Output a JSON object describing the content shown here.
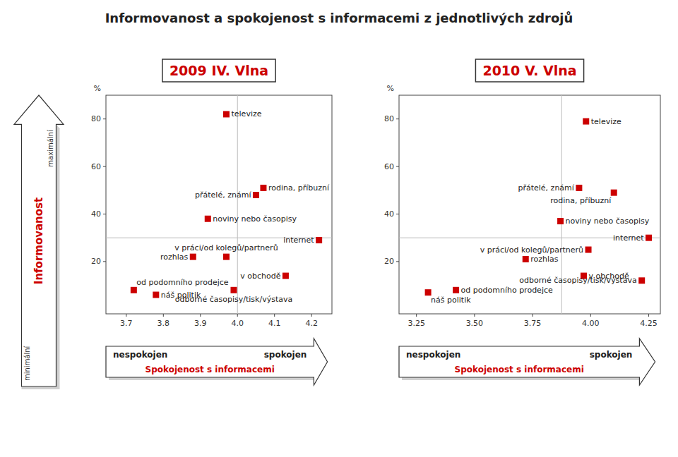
{
  "title": "Informovanost a spokojenost s informacemi z jednotlivých zdrojů",
  "ylabel": "Informovanost",
  "annotations": [
    "maximální",
    "minimální"
  ],
  "chart_data": [
    {
      "type": "scatter",
      "title": "2009 IV. Vlna",
      "xlabel": "Spokojenost s informacemi",
      "ylabel": "%",
      "annotations": [
        "nespokojen",
        "spokojen"
      ],
      "color": "#cc0000",
      "marker": "square",
      "xlim": [
        3.645,
        4.255
      ],
      "ylim": [
        -2,
        90
      ],
      "xticks": [
        3.7,
        3.8,
        3.9,
        {
          "value": 4.0,
          "label": "4.0"
        },
        4.1,
        4.2
      ],
      "yticks": [
        20,
        40,
        60,
        80
      ],
      "hline": 30,
      "vline": 4.0,
      "labels": [
        "televize",
        "rodina, příbuzní",
        "přátelé, známí",
        "noviny nebo časopisy",
        "internet",
        "rozhlas",
        "v práci/od kolegů/partnerů",
        "v obchodě",
        "od podomního prodejce",
        "náš politik",
        "odborné časopisy/tisk/výstava"
      ],
      "x": [
        3.97,
        4.07,
        4.05,
        3.92,
        4.22,
        3.88,
        3.97,
        4.13,
        3.72,
        3.78,
        3.99
      ],
      "values": [
        82,
        51,
        48,
        38,
        29,
        22,
        22,
        14,
        8,
        6,
        8
      ]
    },
    {
      "type": "scatter",
      "title": "2010 V. Vlna",
      "xlabel": "Spokojenost s informacemi",
      "ylabel": "%",
      "annotations": [
        "nespokojen",
        "spokojen"
      ],
      "color": "#cc0000",
      "marker": "square",
      "xlim": [
        3.175,
        4.3
      ],
      "ylim": [
        -2,
        90
      ],
      "xticks": [
        3.25,
        {
          "value": 3.5,
          "label": "3.50"
        },
        3.75,
        {
          "value": 4.0,
          "label": "4.00"
        },
        4.25
      ],
      "yticks": [
        20,
        40,
        60,
        80
      ],
      "hline": 30,
      "vline": 3.875,
      "labels": [
        "televize",
        "přátelé, známí",
        "rodina, příbuzní",
        "noviny nebo časopisy",
        "internet",
        "rozhlas",
        "v práci/od kolegů/partnerů",
        "v obchodě",
        "náš politik",
        "od podomního prodejce",
        "odborné časopisy/tisk/výstava"
      ],
      "x": [
        3.98,
        3.95,
        4.1,
        3.87,
        4.25,
        3.72,
        3.99,
        3.97,
        3.3,
        3.42,
        4.22
      ],
      "values": [
        79,
        51,
        49,
        37,
        30,
        21,
        25,
        14,
        7,
        8,
        12
      ]
    }
  ]
}
